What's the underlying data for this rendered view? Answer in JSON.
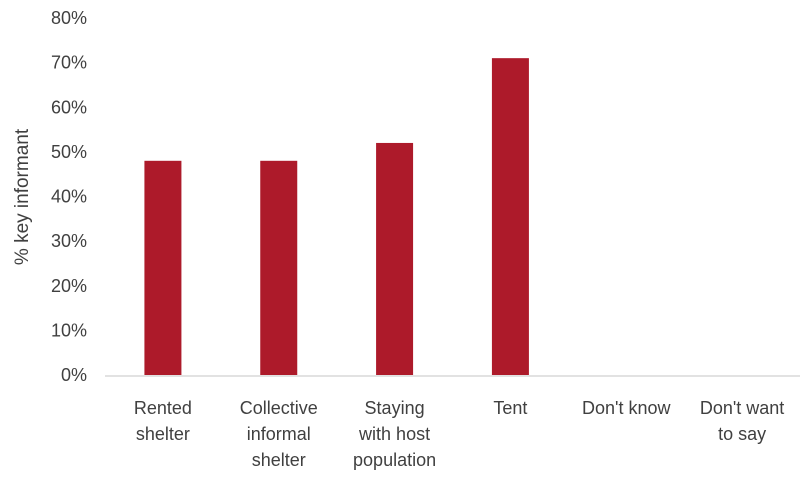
{
  "chart_data": {
    "type": "bar",
    "title": "",
    "xlabel": "",
    "ylabel": "% key informant",
    "ylim": [
      0,
      80
    ],
    "ytick_step": 10,
    "ytick_format": "percent",
    "grid": false,
    "legend": "none",
    "bar_color": "#AD1A2A",
    "categories": [
      [
        "Rented",
        "shelter"
      ],
      [
        "Collective",
        "informal",
        "shelter"
      ],
      [
        "Staying",
        "with host",
        "population"
      ],
      [
        "Tent"
      ],
      [
        "Don't know"
      ],
      [
        "Don't want",
        "to say"
      ]
    ],
    "values": [
      48,
      48,
      52,
      71,
      0,
      0
    ]
  }
}
